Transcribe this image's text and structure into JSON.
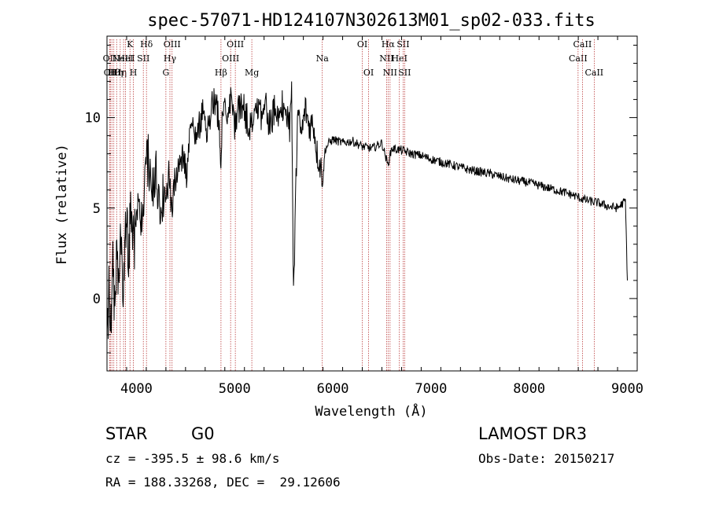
{
  "chart_data": {
    "type": "line",
    "title": "spec-57071-HD124107N302613M01_sp02-033.fits",
    "xlabel": "Wavelength (Å)",
    "ylabel": "Flux (relative)",
    "xlim": [
      3700,
      9100
    ],
    "ylim": [
      -4.0,
      14.5
    ],
    "x_ticks": [
      4000,
      5000,
      6000,
      7000,
      8000,
      9000
    ],
    "y_ticks": [
      0,
      5,
      10
    ],
    "tick_labels_x": [
      "4000",
      "5000",
      "6000",
      "7000",
      "8000",
      "9000"
    ],
    "tick_labels_y": [
      "0",
      "5",
      "10"
    ],
    "series": [
      {
        "name": "flux",
        "x": [
          3700,
          3720,
          3740,
          3760,
          3780,
          3800,
          3820,
          3840,
          3860,
          3880,
          3900,
          3920,
          3940,
          3960,
          3980,
          4000,
          4030,
          4060,
          4090,
          4120,
          4150,
          4180,
          4210,
          4240,
          4270,
          4300,
          4330,
          4360,
          4390,
          4420,
          4450,
          4480,
          4510,
          4540,
          4570,
          4600,
          4640,
          4680,
          4720,
          4760,
          4800,
          4840,
          4860,
          4880,
          4920,
          4960,
          5000,
          5040,
          5080,
          5120,
          5160,
          5200,
          5240,
          5280,
          5320,
          5360,
          5400,
          5440,
          5480,
          5520,
          5560,
          5580,
          5600,
          5640,
          5680,
          5720,
          5760,
          5800,
          5840,
          5880,
          5900,
          5920,
          5960,
          6000,
          6100,
          6200,
          6300,
          6400,
          6500,
          6560,
          6600,
          6700,
          6800,
          6900,
          7000,
          7200,
          7400,
          7600,
          7800,
          8000,
          8200,
          8400,
          8500,
          8540,
          8600,
          8700,
          8800,
          8900,
          8980,
          9000
        ],
        "y": [
          -2.5,
          0.5,
          -1.5,
          2.0,
          -1.0,
          3.0,
          0.0,
          3.5,
          -0.5,
          2.5,
          4.5,
          1.5,
          5.5,
          4.0,
          3.0,
          5.0,
          6.2,
          3.0,
          6.8,
          7.5,
          5.5,
          7.0,
          6.5,
          4.0,
          6.0,
          5.0,
          7.0,
          4.5,
          6.5,
          7.2,
          8.0,
          7.5,
          7.0,
          8.6,
          9.8,
          8.8,
          9.5,
          10.2,
          9.0,
          10.5,
          10.8,
          10.0,
          7.8,
          10.6,
          10.2,
          11.0,
          9.5,
          10.4,
          10.8,
          10.0,
          9.6,
          10.5,
          10.8,
          10.0,
          10.6,
          9.4,
          10.4,
          10.0,
          10.8,
          10.2,
          9.5,
          11.8,
          0.0,
          10.2,
          9.0,
          10.5,
          9.5,
          9.8,
          8.0,
          7.2,
          6.6,
          8.2,
          8.6,
          8.8,
          8.6,
          8.7,
          8.4,
          8.3,
          8.6,
          7.4,
          8.3,
          8.2,
          8.0,
          7.9,
          7.7,
          7.4,
          7.1,
          6.9,
          6.6,
          6.4,
          6.1,
          5.8,
          5.6,
          5.5,
          5.4,
          5.3,
          5.1,
          5.0,
          5.4,
          1.0
        ]
      }
    ],
    "line_markers": [
      {
        "wl": 3728,
        "label": "OII",
        "row": 1
      },
      {
        "wl": 3734,
        "label": "CII",
        "row": 2
      },
      {
        "wl": 3750,
        "label": "H",
        "row": 2
      },
      {
        "wl": 3770,
        "label": "Hθ",
        "row": 2
      },
      {
        "wl": 3798,
        "label": "Hη",
        "row": 2
      },
      {
        "wl": 3835,
        "label": "Hη",
        "row": 2
      },
      {
        "wl": 3869,
        "label": "NeIII",
        "row": 1
      },
      {
        "wl": 3889,
        "label": "HeI",
        "row": 1
      },
      {
        "wl": 3934,
        "label": "K",
        "row": 0
      },
      {
        "wl": 3969,
        "label": "H",
        "row": 2
      },
      {
        "wl": 4070,
        "label": "SII",
        "row": 1
      },
      {
        "wl": 4102,
        "label": "Hδ",
        "row": 0
      },
      {
        "wl": 4300,
        "label": "G",
        "row": 2
      },
      {
        "wl": 4341,
        "label": "Hγ",
        "row": 1
      },
      {
        "wl": 4363,
        "label": "OIII",
        "row": 0
      },
      {
        "wl": 4861,
        "label": "Hβ",
        "row": 2
      },
      {
        "wl": 4959,
        "label": "OIII",
        "row": 1
      },
      {
        "wl": 5007,
        "label": "OIII",
        "row": 0
      },
      {
        "wl": 5175,
        "label": "Mg",
        "row": 2
      },
      {
        "wl": 5893,
        "label": "Na",
        "row": 1
      },
      {
        "wl": 6300,
        "label": "OI",
        "row": 0
      },
      {
        "wl": 6364,
        "label": "OI",
        "row": 2
      },
      {
        "wl": 6548,
        "label": "NII",
        "row": 1
      },
      {
        "wl": 6563,
        "label": "Hα",
        "row": 0
      },
      {
        "wl": 6583,
        "label": "NII",
        "row": 2
      },
      {
        "wl": 6678,
        "label": "HeI",
        "row": 1
      },
      {
        "wl": 6716,
        "label": "SII",
        "row": 0
      },
      {
        "wl": 6731,
        "label": "SII",
        "row": 2
      },
      {
        "wl": 8498,
        "label": "CaII",
        "row": 1
      },
      {
        "wl": 8542,
        "label": "CaII",
        "row": 0
      },
      {
        "wl": 8662,
        "label": "CaII",
        "row": 2
      }
    ]
  },
  "info": {
    "class": "STAR",
    "subclass": "G0",
    "survey": "LAMOST DR3",
    "cz": "cz = -395.5 ± 98.6 km/s",
    "obs_date": "Obs-Date: 20150217",
    "coords": "RA = 188.33268, DEC =  29.12606"
  }
}
